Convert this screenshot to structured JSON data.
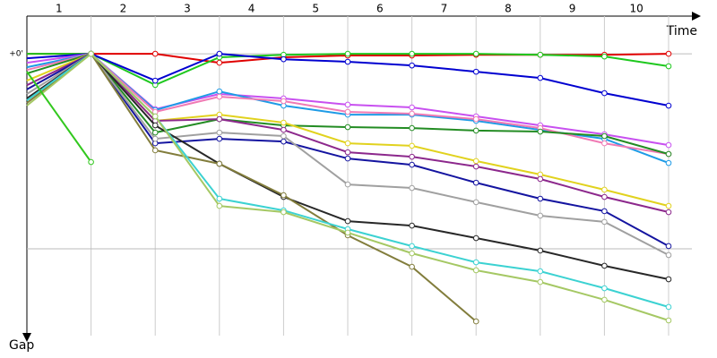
{
  "chart_data": {
    "type": "line",
    "x_label": "Time",
    "y_label": "Gap",
    "categories": [
      "1",
      "2",
      "3",
      "4",
      "5",
      "6",
      "7",
      "8",
      "9",
      "10"
    ],
    "ylim": [
      -0.193,
      1.445
    ],
    "yticks": [
      {
        "value": 0,
        "label": "+0'"
      }
    ],
    "gridlines": [
      0,
      1
    ],
    "series": [
      {
        "color": "#e00000",
        "start": 0,
        "values": [
          0,
          0,
          0.046,
          0.018,
          0.009,
          0.009,
          0.005,
          0.005,
          0.005,
          0
        ]
      },
      {
        "color": "#1ec81e",
        "start": 0,
        "values": [
          0,
          0.16,
          0.018,
          0.005,
          0,
          0,
          0,
          0.005,
          0.014,
          0.064
        ]
      },
      {
        "color": "#0000d0",
        "start": 0.023,
        "values": [
          0,
          0.138,
          0,
          0.028,
          0.041,
          0.06,
          0.092,
          0.124,
          0.202,
          0.266
        ]
      },
      {
        "color": "#c850f0",
        "start": 0.046,
        "values": [
          0,
          0.284,
          0.206,
          0.229,
          0.261,
          0.275,
          0.321,
          0.367,
          0.413,
          0.468
        ]
      },
      {
        "color": "#1e9be6",
        "start": 0.069,
        "values": [
          0,
          0.289,
          0.193,
          0.266,
          0.312,
          0.312,
          0.344,
          0.39,
          0.436,
          0.56
        ]
      },
      {
        "color": "#f07ab4",
        "start": 0.083,
        "values": [
          0,
          0.298,
          0.22,
          0.243,
          0.298,
          0.307,
          0.335,
          0.381,
          0.459,
          0.514
        ]
      },
      {
        "color": "#238c23",
        "start": 0.101,
        "values": [
          0,
          0.404,
          0.335,
          0.367,
          0.376,
          0.381,
          0.394,
          0.399,
          0.422,
          0.514
        ]
      },
      {
        "color": "#e1d21e",
        "start": 0.138,
        "values": [
          0,
          0.344,
          0.312,
          0.353,
          0.459,
          0.472,
          0.55,
          0.619,
          0.697,
          0.78
        ]
      },
      {
        "color": "#8c288c",
        "start": 0.161,
        "values": [
          0,
          0.344,
          0.335,
          0.39,
          0.505,
          0.528,
          0.578,
          0.642,
          0.734,
          0.812
        ]
      },
      {
        "color": "#1414a0",
        "start": 0.183,
        "values": [
          0,
          0.459,
          0.436,
          0.45,
          0.537,
          0.569,
          0.661,
          0.743,
          0.807,
          0.986
        ]
      },
      {
        "color": "#a0a0a0",
        "start": 0.206,
        "values": [
          0,
          0.436,
          0.404,
          0.422,
          0.67,
          0.688,
          0.761,
          0.83,
          0.862,
          1.032
        ]
      },
      {
        "color": "#282828",
        "start": 0.229,
        "values": [
          0,
          0.367,
          0.564,
          0.734,
          0.858,
          0.881,
          0.945,
          1.009,
          1.087,
          1.156
        ]
      },
      {
        "color": "#827d3c",
        "start": 0.252,
        "values": [
          0,
          0.495,
          0.564,
          0.725,
          0.931,
          1.092,
          1.372,
          null,
          null,
          null
        ]
      },
      {
        "color": "#3cd2d2",
        "start": 0.239,
        "values": [
          0,
          0.321,
          0.743,
          0.803,
          0.899,
          0.986,
          1.069,
          1.115,
          1.202,
          1.298
        ]
      },
      {
        "color": "#a5c864",
        "start": 0.266,
        "values": [
          0,
          0.321,
          0.78,
          0.812,
          0.917,
          1.023,
          1.11,
          1.17,
          1.261,
          1.367
        ]
      },
      {
        "color": "#32c81e",
        "start": 0.092,
        "values": [
          0.555,
          null,
          null,
          null,
          null,
          null,
          null,
          null,
          null,
          null
        ]
      }
    ]
  }
}
